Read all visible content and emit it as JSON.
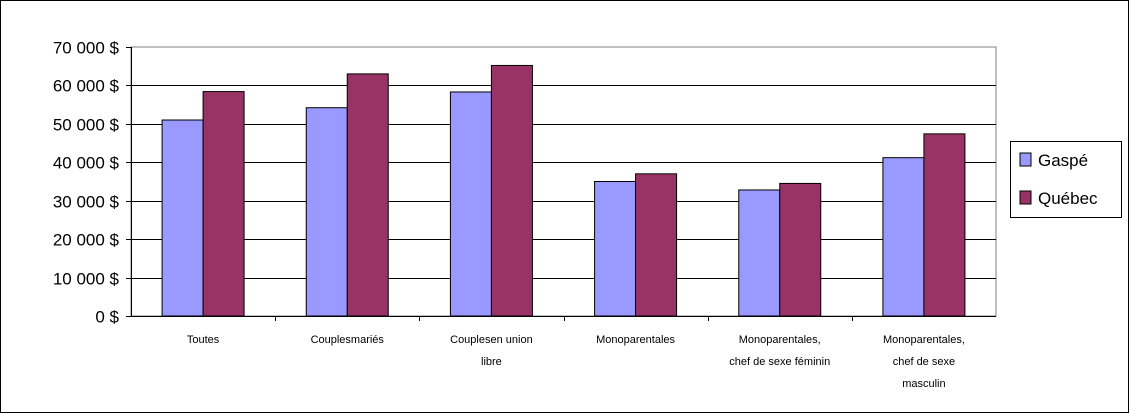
{
  "chart_data": {
    "type": "bar",
    "categories": [
      [
        "Toutes"
      ],
      [
        "Couplesmariés"
      ],
      [
        "Couplesen union",
        "libre"
      ],
      [
        "Monoparentales"
      ],
      [
        "Monoparentales,",
        "chef de sexe féminin"
      ],
      [
        "Monoparentales,",
        "chef de sexe",
        "masculin"
      ]
    ],
    "series": [
      {
        "name": "Gaspé",
        "color": "#9999FF",
        "values": [
          51000,
          54200,
          58300,
          35000,
          32800,
          41200
        ]
      },
      {
        "name": "Québec",
        "color": "#993366",
        "values": [
          58400,
          63000,
          65200,
          37000,
          34500,
          47400
        ]
      }
    ],
    "ylim": [
      0,
      70000
    ],
    "yticks": [
      "0 $",
      "10 000 $",
      "20 000 $",
      "30 000 $",
      "40 000 $",
      "50 000 $",
      "60 000 $",
      "70 000 $"
    ],
    "grid": true,
    "legend_position": "right"
  }
}
